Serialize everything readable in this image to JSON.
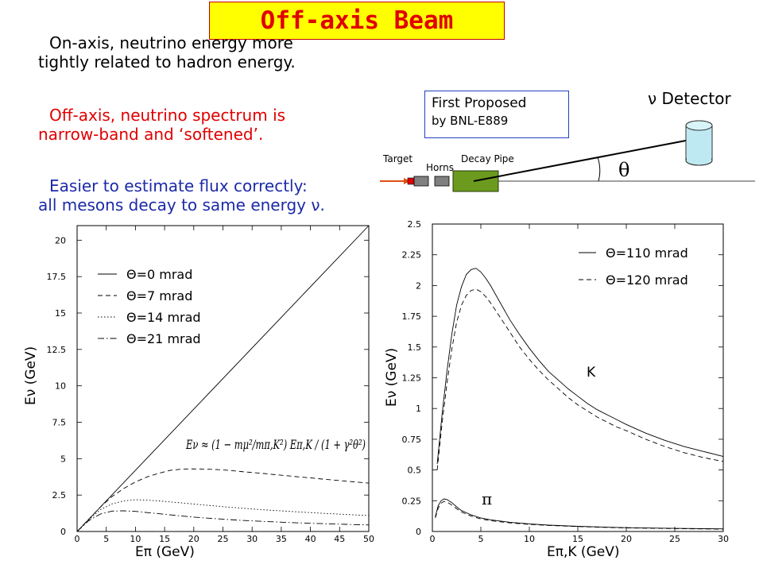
{
  "title": "Off-axis Beam",
  "bullets": [
    {
      "line1": "On-axis, neutrino energy more",
      "line2": "tightly related to hadron energy."
    },
    {
      "line1": "Off-axis, neutrino spectrum is",
      "line2": "narrow-band and ‘softened’."
    },
    {
      "line1": "Easier to estimate flux correctly:",
      "line2": "all mesons decay to same energy  ν."
    }
  ],
  "colors": {
    "title_text": "#e00000",
    "title_bg": "#ffff00",
    "bullet_red": "#e00000",
    "bullet_blue": "#1c2aa8",
    "decay_pipe": "#6b9a1f"
  },
  "diagram": {
    "proposal_line1": "First Proposed",
    "proposal_line2": "by BNL-E889",
    "detector_label": "ν Detector",
    "target_label": "Target",
    "horns_label": "Horns",
    "decay_pipe_label": "Decay Pipe",
    "angle_label": "θ"
  },
  "chart_data": [
    {
      "type": "line",
      "xlabel": "Eπ (GeV)",
      "ylabel": "Eν (GeV)",
      "xlim": [
        0,
        50
      ],
      "ylim": [
        0,
        21
      ],
      "xticks": [
        0,
        5,
        10,
        15,
        20,
        25,
        30,
        35,
        40,
        45,
        50
      ],
      "yticks": [
        0,
        2.5,
        5,
        7.5,
        10,
        12.5,
        15,
        17.5,
        20
      ],
      "tick_labels_x": [
        "0",
        "5",
        "10",
        "15",
        "20",
        "25",
        "30",
        "35",
        "40",
        "45",
        "50"
      ],
      "tick_labels_y": [
        "0",
        "2.5",
        "5",
        "7.5",
        "10",
        "12.5",
        "15",
        "17.5",
        "20"
      ],
      "formula": "Eν ≈ (1 − mμ²/mπ,K²) Eπ,K / (1 + γ²θ²)",
      "legend_position": "top-left",
      "series": [
        {
          "name": "Θ=0 mrad",
          "style": "solid",
          "x": [
            0,
            50
          ],
          "y": [
            0,
            21.4
          ]
        },
        {
          "name": "Θ=7 mrad",
          "style": "dashed",
          "x": [
            0,
            2,
            4,
            6,
            8,
            10,
            12,
            14,
            16,
            18,
            20,
            22,
            24,
            26,
            28,
            30,
            32,
            34,
            36,
            38,
            40,
            42,
            44,
            46,
            48,
            50
          ],
          "y": [
            0,
            0.84,
            1.68,
            2.4,
            2.95,
            3.4,
            3.75,
            4.0,
            4.2,
            4.28,
            4.3,
            4.28,
            4.25,
            4.2,
            4.12,
            4.05,
            3.98,
            3.9,
            3.83,
            3.75,
            3.68,
            3.6,
            3.53,
            3.46,
            3.39,
            3.32
          ]
        },
        {
          "name": "Θ=14 mrad",
          "style": "dotted",
          "x": [
            0,
            2,
            4,
            6,
            8,
            10,
            12,
            14,
            16,
            18,
            20,
            22,
            24,
            26,
            28,
            30,
            32,
            34,
            36,
            38,
            40,
            42,
            44,
            46,
            48,
            50
          ],
          "y": [
            0,
            0.8,
            1.5,
            1.9,
            2.1,
            2.18,
            2.15,
            2.1,
            2.03,
            1.96,
            1.88,
            1.81,
            1.74,
            1.67,
            1.61,
            1.55,
            1.49,
            1.44,
            1.39,
            1.34,
            1.3,
            1.25,
            1.21,
            1.17,
            1.13,
            1.1
          ]
        },
        {
          "name": "Θ=21 mrad",
          "style": "dashdot",
          "x": [
            0,
            2,
            4,
            6,
            8,
            10,
            12,
            14,
            16,
            18,
            20,
            22,
            24,
            26,
            28,
            30,
            32,
            34,
            36,
            38,
            40,
            42,
            44,
            46,
            48,
            50
          ],
          "y": [
            0,
            0.75,
            1.2,
            1.4,
            1.42,
            1.38,
            1.3,
            1.22,
            1.14,
            1.06,
            0.99,
            0.93,
            0.87,
            0.82,
            0.77,
            0.73,
            0.69,
            0.66,
            0.62,
            0.59,
            0.56,
            0.54,
            0.51,
            0.49,
            0.47,
            0.45
          ]
        }
      ]
    },
    {
      "type": "line",
      "xlabel": "Eπ,K (GeV)",
      "ylabel": "Eν (GeV)",
      "xlim": [
        0,
        30
      ],
      "ylim": [
        0,
        2.5
      ],
      "xticks": [
        0,
        5,
        10,
        15,
        20,
        25,
        30
      ],
      "yticks": [
        0,
        0.25,
        0.5,
        0.75,
        1,
        1.25,
        1.5,
        1.75,
        2,
        2.25,
        2.5
      ],
      "tick_labels_x": [
        "0",
        "5",
        "10",
        "15",
        "20",
        "25",
        "30"
      ],
      "tick_labels_y": [
        "0",
        "0.25",
        "0.5",
        "0.75",
        "1",
        "1.25",
        "1.5",
        "1.75",
        "2",
        "2.25",
        "2.5"
      ],
      "annotations": [
        "K",
        "π"
      ],
      "legend_position": "top-right",
      "series": [
        {
          "name": "Θ=110 mrad",
          "style": "solid",
          "group": "K",
          "x": [
            0.5,
            1,
            1.5,
            2,
            2.5,
            3,
            3.5,
            4,
            4.5,
            5,
            5.5,
            6,
            7,
            8,
            9,
            10,
            11,
            12,
            13,
            14,
            15,
            16,
            17,
            18,
            19,
            20,
            22,
            24,
            26,
            28,
            30
          ],
          "y": [
            0.55,
            0.95,
            1.3,
            1.6,
            1.84,
            1.99,
            2.09,
            2.13,
            2.14,
            2.11,
            2.06,
            2.0,
            1.86,
            1.72,
            1.6,
            1.49,
            1.39,
            1.3,
            1.23,
            1.16,
            1.1,
            1.04,
            0.99,
            0.95,
            0.91,
            0.87,
            0.8,
            0.74,
            0.69,
            0.65,
            0.61
          ]
        },
        {
          "name": "Θ=120 mrad",
          "style": "dashed",
          "group": "K",
          "x": [
            0.5,
            1,
            1.5,
            2,
            2.5,
            3,
            3.5,
            4,
            4.5,
            5,
            5.5,
            6,
            7,
            8,
            9,
            10,
            11,
            12,
            13,
            14,
            15,
            16,
            17,
            18,
            19,
            20,
            22,
            24,
            26,
            28,
            30
          ],
          "y": [
            0.5,
            0.88,
            1.2,
            1.48,
            1.7,
            1.84,
            1.92,
            1.96,
            1.97,
            1.95,
            1.91,
            1.86,
            1.74,
            1.62,
            1.5,
            1.4,
            1.31,
            1.23,
            1.16,
            1.09,
            1.03,
            0.98,
            0.93,
            0.89,
            0.85,
            0.82,
            0.75,
            0.69,
            0.64,
            0.6,
            0.57
          ]
        },
        {
          "name": "Θ=110 mrad π",
          "style": "solid",
          "group": "pi",
          "x": [
            0.3,
            0.6,
            0.9,
            1.2,
            1.5,
            2,
            2.5,
            3,
            4,
            5,
            6,
            8,
            10,
            12,
            15,
            18,
            20,
            25,
            30
          ],
          "y": [
            0.12,
            0.21,
            0.25,
            0.265,
            0.26,
            0.235,
            0.2,
            0.17,
            0.135,
            0.11,
            0.095,
            0.075,
            0.062,
            0.052,
            0.042,
            0.035,
            0.031,
            0.025,
            0.021
          ]
        },
        {
          "name": "Θ=120 mrad π",
          "style": "dashed",
          "group": "pi",
          "x": [
            0.3,
            0.6,
            0.9,
            1.2,
            1.5,
            2,
            2.5,
            3,
            4,
            5,
            6,
            8,
            10,
            12,
            15,
            18,
            20,
            25,
            30
          ],
          "y": [
            0.11,
            0.19,
            0.23,
            0.245,
            0.24,
            0.215,
            0.185,
            0.158,
            0.125,
            0.102,
            0.088,
            0.07,
            0.058,
            0.049,
            0.04,
            0.033,
            0.029,
            0.023,
            0.019
          ]
        }
      ]
    }
  ]
}
